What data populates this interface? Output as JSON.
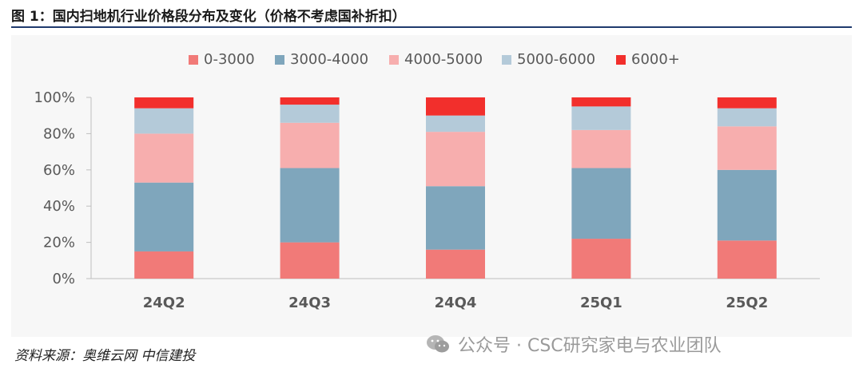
{
  "title": "图 1：国内扫地机行业价格段分布及变化（价格不考虑国补折扣）",
  "source": "资料来源：奥维云网   中信建投",
  "watermark": "公众号 · CSC研究家电与农业团队",
  "colors": {
    "title_rule": "#1f3a6e",
    "series": [
      "#f17a78",
      "#7fa6bc",
      "#f7aeae",
      "#b4cad9",
      "#f22f2c"
    ]
  },
  "chart_data": {
    "type": "bar",
    "stacked": true,
    "categories": [
      "24Q2",
      "24Q3",
      "24Q4",
      "25Q1",
      "25Q2"
    ],
    "series": [
      {
        "name": "0-3000",
        "values": [
          15,
          20,
          16,
          22,
          21
        ]
      },
      {
        "name": "3000-4000",
        "values": [
          38,
          41,
          35,
          39,
          39
        ]
      },
      {
        "name": "4000-5000",
        "values": [
          27,
          25,
          30,
          21,
          24
        ]
      },
      {
        "name": "5000-6000",
        "values": [
          14,
          10,
          9,
          13,
          10
        ]
      },
      {
        "name": "6000+",
        "values": [
          6,
          4,
          10,
          5,
          6
        ]
      }
    ],
    "ylim": [
      0,
      100
    ],
    "yticks": [
      "0%",
      "20%",
      "40%",
      "60%",
      "80%",
      "100%"
    ],
    "legend_position": "top",
    "grid": false
  }
}
